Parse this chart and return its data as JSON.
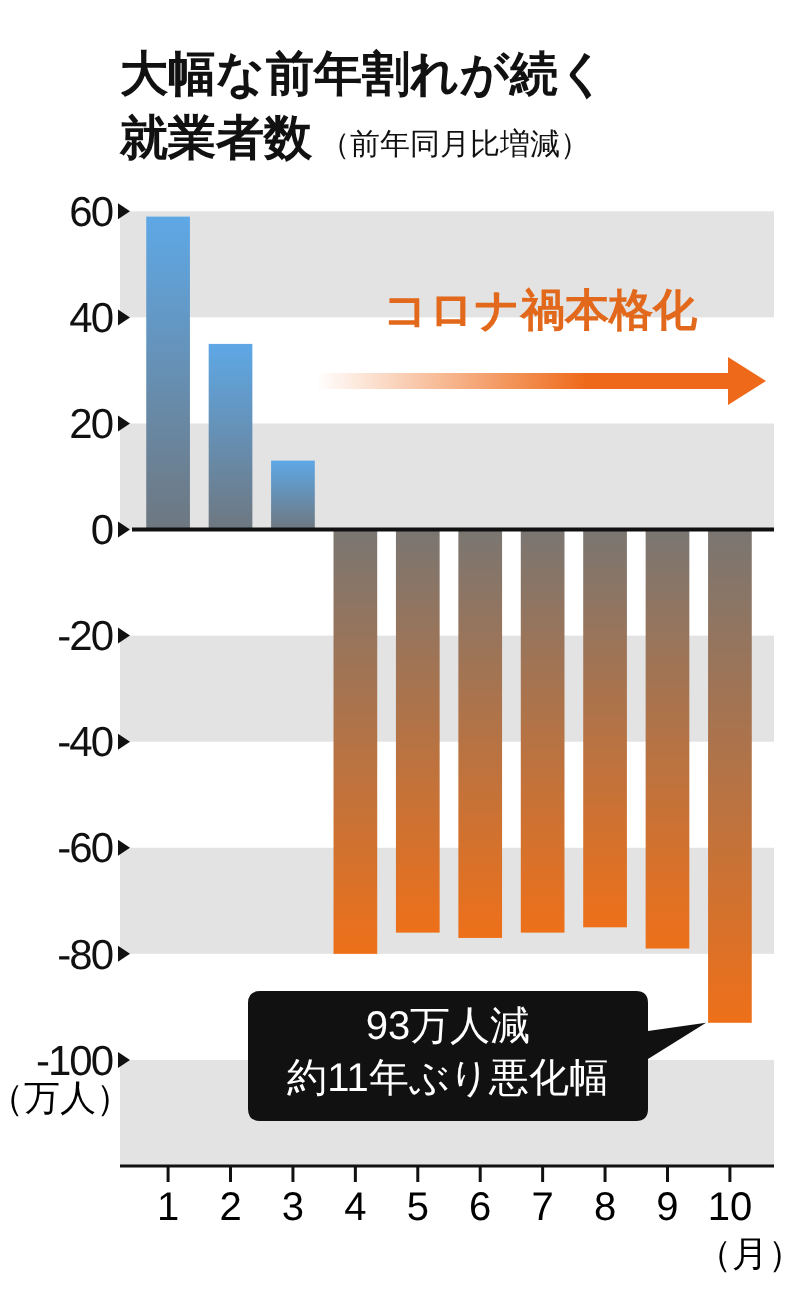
{
  "chart_data": {
    "type": "bar",
    "title": "大幅な前年割れが続く就業者数",
    "subtitle": "（前年同月比増減）",
    "xlabel": "（月）",
    "ylabel": "（万人）",
    "categories": [
      "1",
      "2",
      "3",
      "4",
      "5",
      "6",
      "7",
      "8",
      "9",
      "10"
    ],
    "values": [
      59,
      35,
      13,
      -80,
      -76,
      -77,
      -76,
      -75,
      -79,
      -93
    ],
    "colors": [
      "#5ea8e6",
      "#5ea8e6",
      "#5ea8e6",
      "#ee7019",
      "#ee7019",
      "#ee7019",
      "#ee7019",
      "#ee7019",
      "#ee7019",
      "#ee7019"
    ],
    "ylim": [
      -120,
      61
    ],
    "yticks": [
      60,
      40,
      20,
      0,
      -20,
      -40,
      -60,
      -80,
      -100,
      {
        "value": -120,
        "label": null
      }
    ],
    "grid": true,
    "annotations": [
      "コロナ禍本格化",
      "93万人減",
      "約11年ぶり悪化幅"
    ]
  }
}
